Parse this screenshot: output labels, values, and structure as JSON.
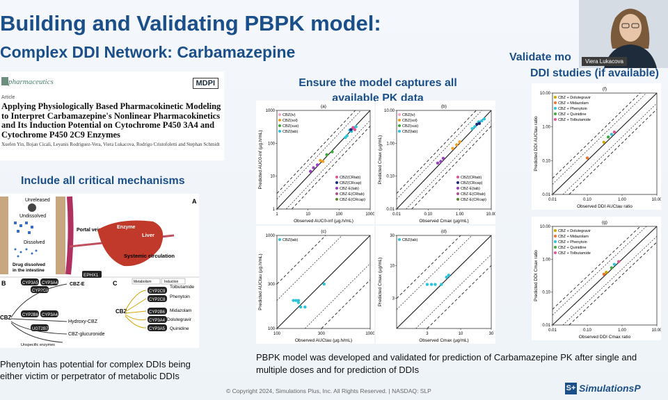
{
  "slide": {
    "title": "Building and Validating PBPK model:",
    "subtitle": "Complex DDI Network: Carbamazepine"
  },
  "paper": {
    "journal": "pharmaceutics",
    "publisher": "MDPI",
    "kind": "Article",
    "title": "Applying Physiologically Based Pharmacokinetic Modeling to Interpret Carbamazepine's Nonlinear Pharmacokinetics and Its Induction Potential on Cytochrome P450 3A4 and Cytochrome P450 2C9 Enzymes",
    "authors": "Xuefen Yin, Bojan Cicali, Leyanis Rodriguez-Vera, Viera Lukacova, Rodrigo Cristofoletti and Stephan Schmidt"
  },
  "mechanisms": {
    "heading": "Include all critical mechanisms",
    "panel_a": "A",
    "panel_b": "B",
    "panel_c": "C",
    "unreleased": "Unreleased",
    "undissolved": "Undissolved",
    "dissolved": "Dissolved",
    "intestine": "Drug dissolved in the intestine",
    "portal_vein": "Portal vein",
    "enzyme": "Enzyme",
    "liver": "Liver",
    "systemic": "Systemic circulation",
    "cbz": "CBZ",
    "cbz_e": "CBZ-E",
    "ephx1": "EPHX1",
    "cyp3a5": "CYP3A5",
    "cyp3a4": "CYP3A4",
    "cyp2c8": "CYP2C8",
    "cyp2b6": "CYP2B6",
    "ugt2b7": "UGT2B7",
    "cyp2c9": "CYP2C9",
    "hydroxy": "Hydroxy-CBZ",
    "glucuronide": "CBZ-glucuronide",
    "unspecific": "Unspecific enzymes",
    "metabolism": "Metabolism",
    "induction": "Induction",
    "tolbutamide": "Tolbutamide",
    "phenytoin": "Phenytoin",
    "midazolam": "Midazolam",
    "dolutegravir": "Dolutegravir",
    "quinidine": "Quinidine"
  },
  "caption_left": "Phenytoin has potential for complex DDIs being either victim or perpetrator of metabolic DDIs",
  "ensure_heading": "Ensure the model captures all available PK data",
  "caption_mid": "PBPK model was developed and validated for prediction of Carbamazepine PK after single and multiple doses and for prediction of DDIs",
  "validate_heading_1": "Validate mo",
  "validate_heading_2": "DDI studies (if available)",
  "presenter": "Viera Lukacova",
  "footer": "© Copyright 2024, Simulations Plus, Inc. All Rights Reserved. | NASDAQ: SLP",
  "brand": "SimulationsP",
  "brand_mark": "S+",
  "colors": {
    "accent": "#1b4f8a",
    "liver": "#c0392b"
  },
  "chart_data": [
    {
      "type": "scatter",
      "panel": "(a)",
      "xlabel": "Observed AUC0-inf (µg.h/mL)",
      "ylabel": "Predicted AUC0-inf (µg.h/mL)",
      "xticks": [
        "1",
        "10",
        "100",
        "1000"
      ],
      "yticks": [
        "1",
        "10",
        "100",
        "1000"
      ],
      "xlim": [
        1,
        1000
      ],
      "ylim": [
        1,
        1000
      ],
      "legend": [
        "CBZ(iv)",
        "CBZ(sol)",
        "CBZ(sus)",
        "CBZ(tab)",
        "CBZ(CRtab)",
        "CBZ(CRcap)",
        "CBZ-E(tab)",
        "CBZ-E(CRtab)",
        "CBZ-E(CRcap)"
      ],
      "series": [
        {
          "name": "CBZ(tab)",
          "color": "#2ec4d8",
          "x": [
            180,
            220,
            300,
            350,
            250,
            160
          ],
          "y": [
            170,
            250,
            280,
            320,
            230,
            150
          ]
        },
        {
          "name": "CBZ(sus)",
          "color": "#3daa3d",
          "x": [
            40,
            60
          ],
          "y": [
            45,
            55
          ]
        },
        {
          "name": "CBZ(sol)",
          "color": "#f0a020",
          "x": [
            25,
            30
          ],
          "y": [
            30,
            28
          ]
        },
        {
          "name": "CBZ-E(tab)",
          "color": "#9a3fc0",
          "x": [
            15,
            20,
            12
          ],
          "y": [
            18,
            22,
            14
          ]
        },
        {
          "name": "CBZ(CRtab)",
          "color": "#e05590",
          "x": [
            280,
            320
          ],
          "y": [
            300,
            260
          ]
        },
        {
          "name": "CBZ(CRcap)",
          "color": "#1a2a7a",
          "x": [
            240
          ],
          "y": [
            260
          ]
        }
      ]
    },
    {
      "type": "scatter",
      "panel": "(b)",
      "xlabel": "Observed Cmax (µg/mL)",
      "ylabel": "Predicted Cmax (µg/mL)",
      "xticks": [
        "0.01",
        "0.10",
        "1.00",
        "10.00"
      ],
      "yticks": [
        "0.01",
        "0.10",
        "1.00",
        "10.00"
      ],
      "xlim": [
        0.01,
        10
      ],
      "ylim": [
        0.01,
        10
      ],
      "legend": [
        "CBZ(iv)",
        "CBZ(sol)",
        "CBZ(sus)",
        "CBZ(tab)",
        "CBZ(CRtab)",
        "CBZ(CRcap)",
        "CBZ-E(tab)",
        "CBZ-E(CRtab)",
        "CBZ-E(CRcap)"
      ],
      "series": [
        {
          "name": "CBZ(tab)",
          "color": "#2ec4d8",
          "x": [
            3,
            4,
            5,
            6,
            2.5
          ],
          "y": [
            3.2,
            4.5,
            4.8,
            5.5,
            2.8
          ]
        },
        {
          "name": "CBZ(sol)",
          "color": "#f0a020",
          "x": [
            0.6,
            1.0,
            0.8
          ],
          "y": [
            0.7,
            1.1,
            0.9
          ]
        },
        {
          "name": "CBZ-E(tab)",
          "color": "#9a3fc0",
          "x": [
            0.2,
            0.3,
            0.25
          ],
          "y": [
            0.25,
            0.35,
            0.28
          ]
        },
        {
          "name": "CBZ(CRcap)",
          "color": "#1a2a7a",
          "x": [
            3.5,
            4.2
          ],
          "y": [
            3.8,
            4.0
          ]
        }
      ]
    },
    {
      "type": "scatter",
      "panel": "(c)",
      "xlabel": "Observed AUCtau (µg.h/mL)",
      "ylabel": "Predicted AUCtau (µg.h/mL)",
      "xticks": [
        "100",
        "300",
        "1000"
      ],
      "yticks": [
        "100",
        "300",
        "1000"
      ],
      "xlim": [
        100,
        1000
      ],
      "ylim": [
        100,
        1000
      ],
      "legend": [
        "CBZ(tab)"
      ],
      "series": [
        {
          "name": "CBZ(tab)",
          "color": "#2ec4d8",
          "x": [
            150,
            160,
            170,
            180,
            200,
            170,
            320
          ],
          "y": [
            200,
            200,
            200,
            170,
            170,
            190,
            300
          ]
        }
      ]
    },
    {
      "type": "scatter",
      "panel": "(d)",
      "xlabel": "Observed Cmax (µg/mL)",
      "ylabel": "Predicted Cmax (µg/mL)",
      "xticks": [
        "3",
        "10",
        "30"
      ],
      "yticks": [
        "3",
        "10",
        "30"
      ],
      "xlim": [
        1,
        30
      ],
      "ylim": [
        1,
        30
      ],
      "legend": [
        "CBZ(tab)"
      ],
      "series": [
        {
          "name": "CBZ(tab)",
          "color": "#2ec4d8",
          "x": [
            3,
            3.5,
            4,
            5,
            6,
            6.5
          ],
          "y": [
            5,
            5,
            5,
            5,
            6.5,
            7
          ]
        }
      ]
    },
    {
      "type": "scatter",
      "panel": "(f)",
      "xlabel": "Observed DDI AUCtau ratio",
      "ylabel": "Predicted DDI AUCtau ratio",
      "xticks": [
        "0.01",
        "0.10",
        "1.00",
        "10.00"
      ],
      "yticks": [
        "0.01",
        "0.10",
        "1.00",
        "10.00"
      ],
      "xlim": [
        0.01,
        10
      ],
      "ylim": [
        0.01,
        10
      ],
      "legend": [
        "CBZ + Dolutegravir",
        "CBZ + Midazolam",
        "CBZ + Phenytoin",
        "CBZ + Quinidine",
        "CBZ + Tolbutamide"
      ],
      "series": [
        {
          "name": "CBZ + Dolutegravir",
          "color": "#c9a800",
          "x": [
            0.3
          ],
          "y": [
            0.35
          ]
        },
        {
          "name": "CBZ + Midazolam",
          "color": "#f07030",
          "x": [
            0.1
          ],
          "y": [
            0.12
          ]
        },
        {
          "name": "CBZ + Phenytoin",
          "color": "#2ec4d8",
          "x": [
            0.5
          ],
          "y": [
            0.6
          ]
        },
        {
          "name": "CBZ + Quinidine",
          "color": "#3daa3d",
          "x": [
            0.4
          ],
          "y": [
            0.5
          ]
        },
        {
          "name": "CBZ + Tolbutamide",
          "color": "#e05590",
          "x": [
            0.6
          ],
          "y": [
            0.7
          ]
        }
      ]
    },
    {
      "type": "scatter",
      "panel": "(g)",
      "xlabel": "Observed DDI Cmax ratio",
      "ylabel": "Predicted DDI Cmax ratio",
      "xticks": [
        "0.01",
        "0.10",
        "1.00",
        "10.00"
      ],
      "yticks": [
        "0.01",
        "0.10",
        "1.00",
        "10.00"
      ],
      "xlim": [
        0.01,
        10
      ],
      "ylim": [
        0.01,
        10
      ],
      "legend": [
        "CBZ + Dolutegravir",
        "CBZ + Midazolam",
        "CBZ + Phenytoin",
        "CBZ + Quinidine",
        "CBZ + Tolbutamide"
      ],
      "series": [
        {
          "name": "CBZ + Dolutegravir",
          "color": "#c9a800",
          "x": [
            0.35
          ],
          "y": [
            0.4
          ]
        },
        {
          "name": "CBZ + Midazolam",
          "color": "#f07030",
          "x": [
            0.3
          ],
          "y": [
            0.35
          ]
        },
        {
          "name": "CBZ + Phenytoin",
          "color": "#2ec4d8",
          "x": [
            0.6
          ],
          "y": [
            0.7
          ]
        },
        {
          "name": "CBZ + Quinidine",
          "color": "#3daa3d",
          "x": [
            0.5
          ],
          "y": [
            0.55
          ]
        },
        {
          "name": "CBZ + Tolbutamide",
          "color": "#e05590",
          "x": [
            0.8
          ],
          "y": [
            0.85
          ]
        }
      ]
    }
  ]
}
